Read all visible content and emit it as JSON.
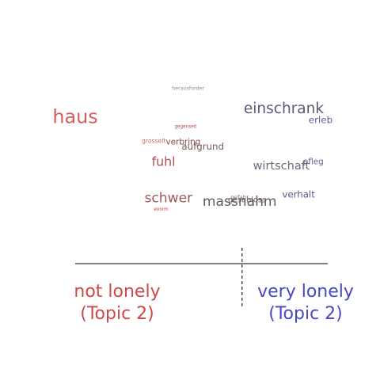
{
  "chart_data": {
    "type": "scatter",
    "title": "",
    "xlabel": "",
    "ylabel": "",
    "xlim": [
      0,
      1
    ],
    "ylim": [
      0,
      1
    ],
    "grid": false,
    "legend": "none",
    "colors": {
      "low": "#d94848",
      "mid": "#8a5a5a",
      "high": "#4848c8",
      "axis": "#000000"
    },
    "points": [
      {
        "word": "herausforder",
        "x": 0.46,
        "y": 0.94,
        "size": 1,
        "color": "#9a8585"
      },
      {
        "word": "einschrank",
        "x": 0.85,
        "y": 0.8,
        "size": 10,
        "color": "#5a5a7a"
      },
      {
        "word": "haus",
        "x": 0.0,
        "y": 0.74,
        "size": 14,
        "color": "#d95c5c"
      },
      {
        "word": "erleb",
        "x": 1.0,
        "y": 0.74,
        "size": 5,
        "color": "#5a5a9a"
      },
      {
        "word": "gegenseit",
        "x": 0.45,
        "y": 0.71,
        "size": 0.5,
        "color": "#b04a4a"
      },
      {
        "word": "grosselt",
        "x": 0.32,
        "y": 0.62,
        "size": 2,
        "color": "#c07070"
      },
      {
        "word": "verbring",
        "x": 0.44,
        "y": 0.61,
        "size": 4,
        "color": "#8a4a4a"
      },
      {
        "word": "aufgrund",
        "x": 0.52,
        "y": 0.58,
        "size": 5,
        "color": "#7a5a5a"
      },
      {
        "word": "fuhl",
        "x": 0.36,
        "y": 0.48,
        "size": 8,
        "color": "#b05050"
      },
      {
        "word": "pfleg",
        "x": 0.97,
        "y": 0.49,
        "size": 4,
        "color": "#6a5a8a"
      },
      {
        "word": "wirtschaft",
        "x": 0.84,
        "y": 0.46,
        "size": 7,
        "color": "#6a6a7a"
      },
      {
        "word": "verhalt",
        "x": 0.91,
        "y": 0.29,
        "size": 5,
        "color": "#5a5a8a"
      },
      {
        "word": "schwer",
        "x": 0.38,
        "y": 0.26,
        "size": 9,
        "color": "#a05858"
      },
      {
        "word": "gefahr",
        "x": 0.67,
        "y": 0.28,
        "size": 1.5,
        "color": "#7a6a6a"
      },
      {
        "word": "gesabloss",
        "x": 0.7,
        "y": 0.26,
        "size": 3.5,
        "color": "#6a6a6a"
      },
      {
        "word": "massnahm",
        "x": 0.67,
        "y": 0.24,
        "size": 9,
        "color": "#6a5a5a"
      },
      {
        "word": "enorm",
        "x": 0.35,
        "y": 0.21,
        "size": 0.5,
        "color": "#c04040"
      }
    ],
    "divider_x": 0.68,
    "annotations": {
      "left": {
        "line1": "not lonely",
        "line2": "(Topic 2)"
      },
      "right": {
        "line1": "very lonely",
        "line2": "(Topic 2)"
      }
    }
  }
}
